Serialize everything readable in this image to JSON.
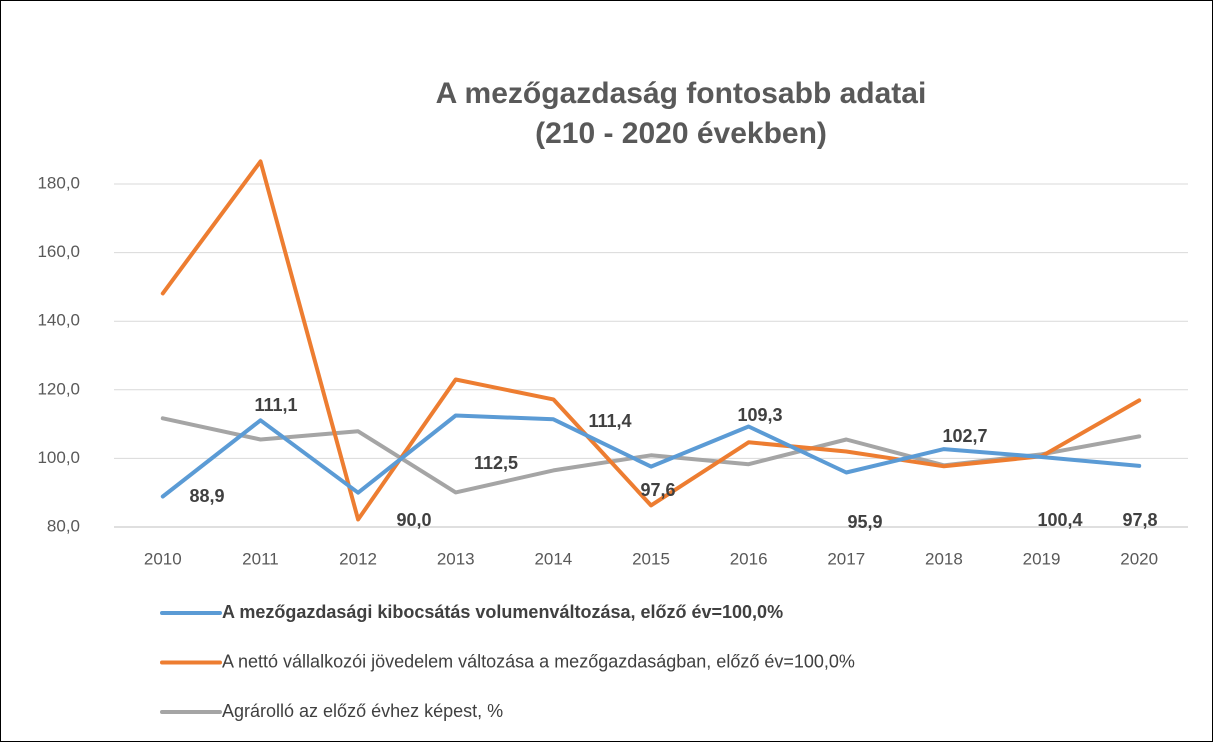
{
  "chart_data": {
    "type": "line",
    "title": [
      "A mezőgazdaság fontosabb adatai",
      "(210 - 2020 években)"
    ],
    "categories": [
      "2010",
      "2011",
      "2012",
      "2013",
      "2014",
      "2015",
      "2016",
      "2017",
      "2018",
      "2019",
      "2020"
    ],
    "series": [
      {
        "name": "A mezőgazdasági kibocsátás volumenváltozása, előző év=100,0%",
        "color": "#5b9bd5",
        "values": [
          88.9,
          111.1,
          90.0,
          112.5,
          111.4,
          97.6,
          109.3,
          95.9,
          102.7,
          100.4,
          97.8
        ],
        "value_labels": [
          "88,9",
          "111,1",
          "90,0",
          "112,5",
          "111,4",
          "97,6",
          "109,3",
          "95,9",
          "102,7",
          "100,4",
          "97,8"
        ]
      },
      {
        "name": "A nettó vállalkozói jövedelem változása a mezőgazdaságban, előző év=100,0%",
        "color": "#ed7d31",
        "values": [
          148.1,
          186.6,
          82.2,
          123.0,
          117.2,
          86.3,
          104.7,
          102.0,
          97.7,
          100.6,
          116.9
        ]
      },
      {
        "name": "Agrárolló az előző évhez képest, %",
        "color": "#a5a5a5",
        "values": [
          111.7,
          105.5,
          107.9,
          90.1,
          96.5,
          100.9,
          98.3,
          105.5,
          98.0,
          101.2,
          106.4
        ]
      }
    ],
    "ylim": [
      80,
      180
    ],
    "yticks": [
      {
        "value": 80,
        "label": "80,0"
      },
      {
        "value": 100,
        "label": "100,0"
      },
      {
        "value": 120,
        "label": "120,0"
      },
      {
        "value": 140,
        "label": "140,0"
      },
      {
        "value": 160,
        "label": "160,0"
      },
      {
        "value": 180,
        "label": "180,0"
      }
    ],
    "grid": true
  }
}
